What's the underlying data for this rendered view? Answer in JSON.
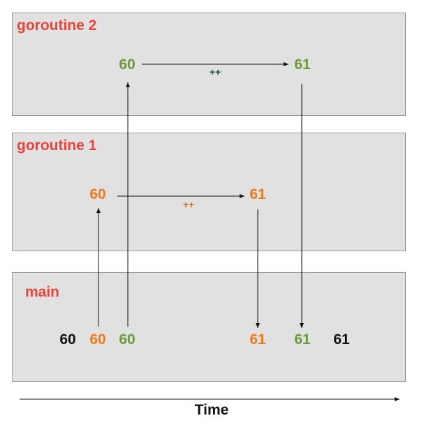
{
  "panels": {
    "goroutine2": {
      "title": "goroutine 2",
      "before": "60",
      "after": "61",
      "op": "++"
    },
    "goroutine1": {
      "title": "goroutine 1",
      "before": "60",
      "after": "61",
      "op": "++"
    },
    "main": {
      "title": "main",
      "values": [
        "60",
        "60",
        "60",
        "61",
        "61",
        "61"
      ]
    }
  },
  "axis": {
    "label": "Time"
  },
  "colors": {
    "title": "#e8453c",
    "goroutine2": "#6a9a3a",
    "goroutine1": "#ef7a1a",
    "main": "#111111",
    "panel_bg": "#e1e1e1"
  }
}
